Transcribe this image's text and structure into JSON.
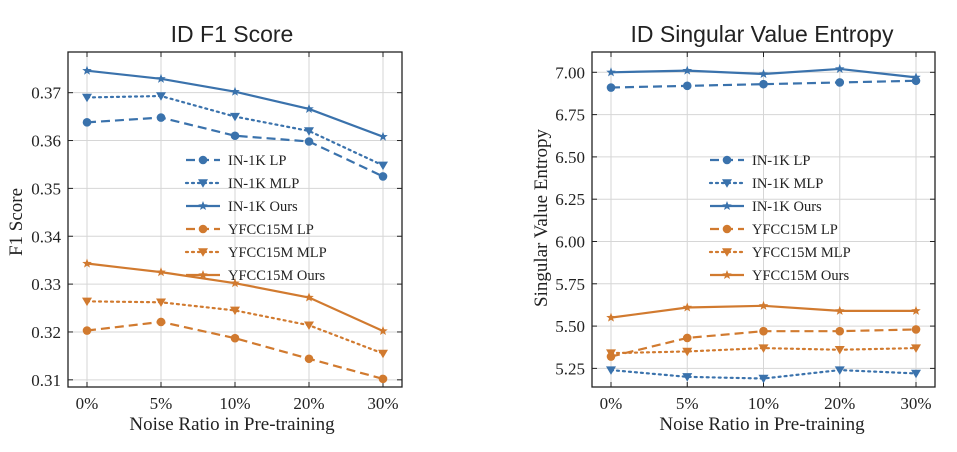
{
  "chart_data": [
    {
      "type": "line",
      "title": "ID F1 Score",
      "xlabel": "Noise Ratio in Pre-training",
      "ylabel": "F1 Score",
      "categories": [
        "0%",
        "5%",
        "10%",
        "20%",
        "30%"
      ],
      "ylim": [
        0.3085,
        0.3785
      ],
      "yticks": [
        0.31,
        0.32,
        0.33,
        0.34,
        0.35,
        0.36,
        0.37
      ],
      "ytick_labels": [
        "0.31",
        "0.32",
        "0.33",
        "0.34",
        "0.35",
        "0.36",
        "0.37"
      ],
      "grid": true,
      "legend_position": "center-right",
      "series": [
        {
          "name": "IN-1K LP",
          "color": "#3a72ac",
          "dash": "dashed",
          "marker": "circle",
          "values": [
            0.3638,
            0.3648,
            0.361,
            0.3598,
            0.3525
          ]
        },
        {
          "name": "IN-1K MLP",
          "color": "#3a72ac",
          "dash": "dotted",
          "marker": "triangle-down",
          "values": [
            0.369,
            0.3693,
            0.365,
            0.362,
            0.3548
          ]
        },
        {
          "name": "IN-1K Ours",
          "color": "#3a72ac",
          "dash": "solid",
          "marker": "star",
          "values": [
            0.3746,
            0.3729,
            0.3702,
            0.3666,
            0.3608
          ]
        },
        {
          "name": "YFCC15M LP",
          "color": "#d17a2f",
          "dash": "dashed",
          "marker": "circle",
          "values": [
            0.3203,
            0.3221,
            0.3187,
            0.3144,
            0.3102
          ]
        },
        {
          "name": "YFCC15M MLP",
          "color": "#d17a2f",
          "dash": "dotted",
          "marker": "triangle-down",
          "values": [
            0.3264,
            0.3262,
            0.3245,
            0.3214,
            0.3155
          ]
        },
        {
          "name": "YFCC15M Ours",
          "color": "#d17a2f",
          "dash": "solid",
          "marker": "star",
          "values": [
            0.3343,
            0.3325,
            0.3302,
            0.3272,
            0.3202
          ]
        }
      ]
    },
    {
      "type": "line",
      "title": "ID Singular Value Entropy",
      "xlabel": "Noise Ratio in Pre-training",
      "ylabel": "Singular Value Entropy",
      "categories": [
        "0%",
        "5%",
        "10%",
        "20%",
        "30%"
      ],
      "ylim": [
        5.14,
        7.12
      ],
      "yticks": [
        5.25,
        5.5,
        5.75,
        6.0,
        6.25,
        6.5,
        6.75,
        7.0
      ],
      "ytick_labels": [
        "5.25",
        "5.50",
        "5.75",
        "6.00",
        "6.25",
        "6.50",
        "6.75",
        "7.00"
      ],
      "grid": true,
      "legend_position": "center-right",
      "series": [
        {
          "name": "IN-1K LP",
          "color": "#3a72ac",
          "dash": "dashed",
          "marker": "circle",
          "values": [
            6.91,
            6.92,
            6.93,
            6.94,
            6.95
          ]
        },
        {
          "name": "IN-1K MLP",
          "color": "#3a72ac",
          "dash": "dotted",
          "marker": "triangle-down",
          "values": [
            5.24,
            5.2,
            5.19,
            5.24,
            5.22
          ]
        },
        {
          "name": "IN-1K Ours",
          "color": "#3a72ac",
          "dash": "solid",
          "marker": "star",
          "values": [
            7.0,
            7.01,
            6.99,
            7.02,
            6.97
          ]
        },
        {
          "name": "YFCC15M LP",
          "color": "#d17a2f",
          "dash": "dashed",
          "marker": "circle",
          "values": [
            5.32,
            5.43,
            5.47,
            5.47,
            5.48
          ]
        },
        {
          "name": "YFCC15M MLP",
          "color": "#d17a2f",
          "dash": "dotted",
          "marker": "triangle-down",
          "values": [
            5.34,
            5.35,
            5.37,
            5.36,
            5.37
          ]
        },
        {
          "name": "YFCC15M Ours",
          "color": "#d17a2f",
          "dash": "solid",
          "marker": "star",
          "values": [
            5.55,
            5.61,
            5.62,
            5.59,
            5.59
          ]
        }
      ]
    }
  ]
}
